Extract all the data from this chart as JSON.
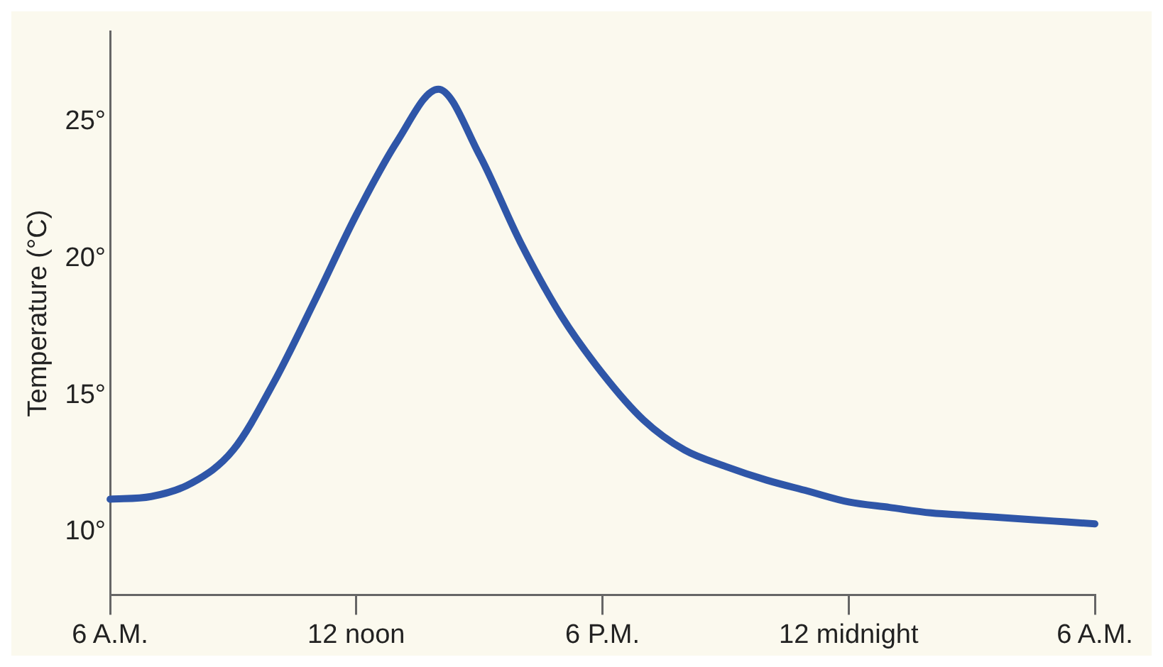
{
  "chart_data": {
    "type": "line",
    "ylabel": "Temperature (°C)",
    "categories": [
      "6 A.M.",
      null,
      null,
      null,
      null,
      null,
      "12 noon",
      null,
      null,
      null,
      null,
      null,
      "6 P.M.",
      null,
      null,
      null,
      null,
      null,
      "12 midnight",
      null,
      null,
      null,
      null,
      null,
      "6 A.M."
    ],
    "ylim": [
      7.7,
      28.3
    ],
    "yticks": [
      {
        "value": 10,
        "label": "10°"
      },
      {
        "value": 15,
        "label": "15°"
      },
      {
        "value": 20,
        "label": "20°"
      },
      {
        "value": 25,
        "label": "25°"
      }
    ],
    "series": [
      {
        "color": "#2f56a8",
        "values": [
          11.2,
          11.3,
          11.8,
          13.0,
          15.5,
          18.5,
          21.6,
          24.3,
          26.2,
          23.8,
          20.6,
          17.9,
          15.8,
          14.1,
          13.0,
          12.4,
          11.9,
          11.5,
          11.1,
          10.9,
          10.7,
          10.6,
          10.5,
          10.4,
          10.3
        ]
      }
    ],
    "grid": false,
    "legend": false,
    "marker": "none",
    "line_style": "solid"
  }
}
